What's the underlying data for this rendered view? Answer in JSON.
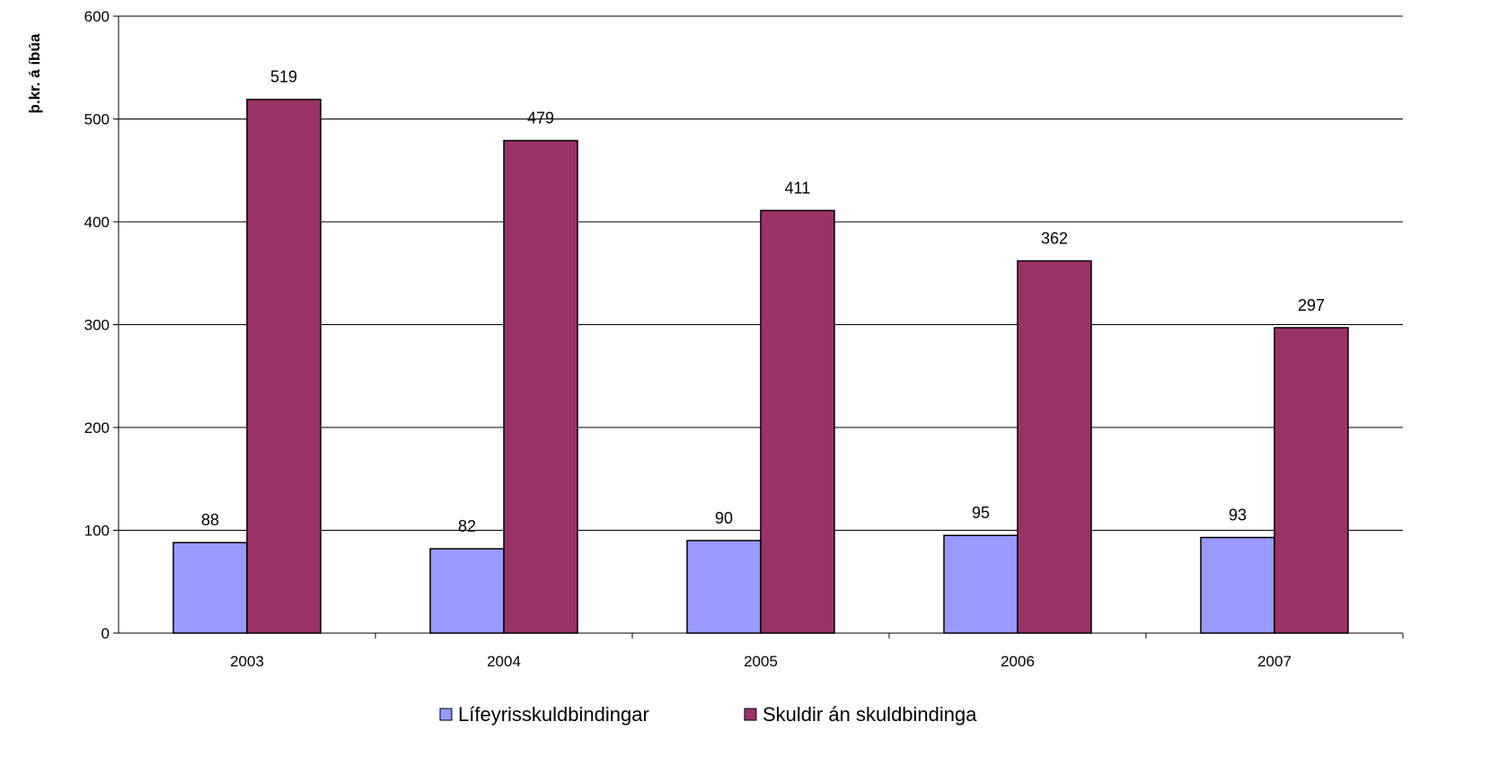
{
  "chart_data": {
    "type": "bar",
    "title": "",
    "xlabel": "",
    "ylabel": "þ.kr. á íbúa",
    "ylim": [
      0,
      600
    ],
    "yticks": [
      0,
      100,
      200,
      300,
      400,
      500,
      600
    ],
    "grid": true,
    "legend_position": "bottom",
    "categories": [
      "2003",
      "2004",
      "2005",
      "2006",
      "2007"
    ],
    "series": [
      {
        "name": "Lífeyrisskuldbindingar",
        "color": "#9999ff",
        "values": [
          88,
          82,
          90,
          95,
          93
        ]
      },
      {
        "name": "Skuldir án skuldbindinga",
        "color": "#993366",
        "values": [
          519,
          479,
          411,
          362,
          297
        ]
      }
    ]
  }
}
